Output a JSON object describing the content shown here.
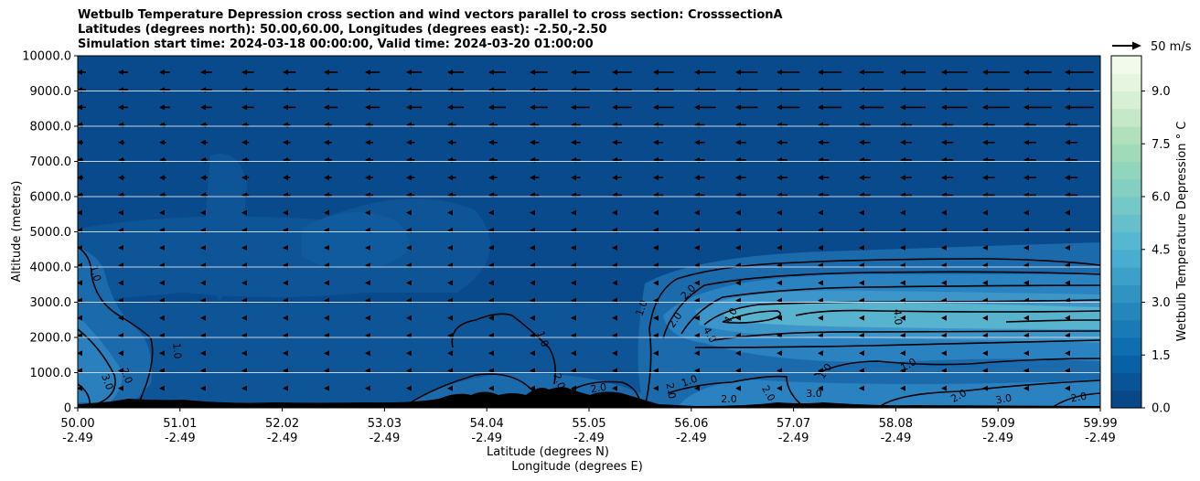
{
  "chart_data": {
    "type": "heatmap",
    "title_lines": [
      "Wetbulb Temperature Depression cross section and wind vectors parallel to cross section: CrosssectionA",
      "Latitudes (degrees north): 50.00,60.00, Longitudes (degrees east): -2.50,-2.50",
      "Simulation start time: 2024-03-18 00:00:00, Valid time: 2024-03-20 01:00:00"
    ],
    "ylabel": "Altitude (meters)",
    "xlabel_lines": [
      "Latitude (degrees N)",
      "Longitude (degrees E)"
    ],
    "ylim": [
      0,
      10000
    ],
    "y_ticks": [
      "0",
      "1000.0",
      "2000.0",
      "3000.0",
      "4000.0",
      "5000.0",
      "6000.0",
      "7000.0",
      "8000.0",
      "9000.0",
      "10000.0"
    ],
    "x_ticks": [
      {
        "lat": "50.00",
        "lon": "-2.49"
      },
      {
        "lat": "51.01",
        "lon": "-2.49"
      },
      {
        "lat": "52.02",
        "lon": "-2.49"
      },
      {
        "lat": "53.03",
        "lon": "-2.49"
      },
      {
        "lat": "54.04",
        "lon": "-2.49"
      },
      {
        "lat": "55.05",
        "lon": "-2.49"
      },
      {
        "lat": "56.06",
        "lon": "-2.49"
      },
      {
        "lat": "57.07",
        "lon": "-2.49"
      },
      {
        "lat": "58.08",
        "lon": "-2.49"
      },
      {
        "lat": "59.09",
        "lon": "-2.49"
      },
      {
        "lat": "59.99",
        "lon": "-2.49"
      }
    ],
    "colorbar": {
      "label": "Wetbulb Temperature Depression $^\\circ$C",
      "label_display": "Wetbulb Temperature Depression ° C",
      "range": [
        0,
        10
      ],
      "ticks": [
        "0.0",
        "1.5",
        "3.0",
        "4.5",
        "6.0",
        "7.5",
        "9.0"
      ],
      "levels": 20
    },
    "wind_reference": "50 m/s",
    "contour_labels": [
      "1.0",
      "1.0",
      "2.0",
      "3.0",
      "1.0",
      "2.0",
      "1.0",
      "2.0",
      "2.0",
      "4.0",
      "4.0",
      "4.0",
      "1.0",
      "1.0",
      "1.0",
      "2.0",
      "2.0",
      "2.0",
      "3.0",
      "2.0",
      "2.0",
      "3.0",
      "2.0"
    ]
  }
}
